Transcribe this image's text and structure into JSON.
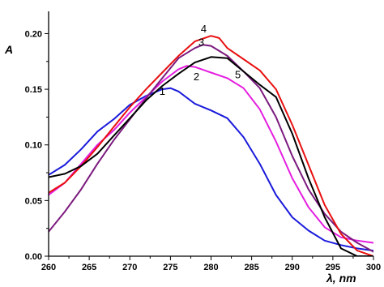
{
  "chart_data": {
    "type": "line",
    "xlabel": "λ, nm",
    "ylabel": "A",
    "xlim": [
      260,
      300
    ],
    "ylim": [
      0,
      0.22
    ],
    "x_ticks": [
      "260",
      "265",
      "270",
      "275",
      "280",
      "285",
      "290",
      "295",
      "300"
    ],
    "y_ticks": [
      "0.00",
      "0.05",
      "0.10",
      "0.15",
      "0.20"
    ],
    "grid": false,
    "series": [
      {
        "name": "1",
        "color": "#1a1adb",
        "label_at": [
          274,
          0.145
        ],
        "points": [
          [
            260,
            0.073
          ],
          [
            262,
            0.082
          ],
          [
            264,
            0.096
          ],
          [
            266,
            0.112
          ],
          [
            268,
            0.123
          ],
          [
            270,
            0.136
          ],
          [
            272,
            0.144
          ],
          [
            274,
            0.15
          ],
          [
            275,
            0.151
          ],
          [
            276,
            0.148
          ],
          [
            278,
            0.137
          ],
          [
            280,
            0.131
          ],
          [
            282,
            0.124
          ],
          [
            284,
            0.107
          ],
          [
            286,
            0.083
          ],
          [
            288,
            0.055
          ],
          [
            290,
            0.035
          ],
          [
            292,
            0.023
          ],
          [
            294,
            0.014
          ],
          [
            296,
            0.01
          ],
          [
            298,
            0.007
          ],
          [
            300,
            0.005
          ]
        ]
      },
      {
        "name": "2",
        "color": "#e51ee0",
        "label_at": [
          278.2,
          0.158
        ],
        "points": [
          [
            260,
            0.055
          ],
          [
            262,
            0.066
          ],
          [
            264,
            0.083
          ],
          [
            266,
            0.1
          ],
          [
            268,
            0.113
          ],
          [
            270,
            0.129
          ],
          [
            272,
            0.143
          ],
          [
            274,
            0.157
          ],
          [
            276,
            0.168
          ],
          [
            277,
            0.171
          ],
          [
            278,
            0.17
          ],
          [
            280,
            0.165
          ],
          [
            282,
            0.16
          ],
          [
            284,
            0.151
          ],
          [
            286,
            0.132
          ],
          [
            288,
            0.103
          ],
          [
            290,
            0.07
          ],
          [
            292,
            0.044
          ],
          [
            294,
            0.026
          ],
          [
            296,
            0.017
          ],
          [
            298,
            0.014
          ],
          [
            300,
            0.012
          ]
        ]
      },
      {
        "name": "3",
        "color": "#7b1a7e",
        "label_at": [
          278.8,
          0.189
        ],
        "points": [
          [
            260,
            0.022
          ],
          [
            262,
            0.04
          ],
          [
            264,
            0.06
          ],
          [
            266,
            0.083
          ],
          [
            268,
            0.104
          ],
          [
            270,
            0.123
          ],
          [
            272,
            0.142
          ],
          [
            274,
            0.16
          ],
          [
            276,
            0.178
          ],
          [
            278,
            0.187
          ],
          [
            279,
            0.19
          ],
          [
            280,
            0.189
          ],
          [
            282,
            0.18
          ],
          [
            284,
            0.166
          ],
          [
            286,
            0.151
          ],
          [
            288,
            0.125
          ],
          [
            290,
            0.09
          ],
          [
            292,
            0.06
          ],
          [
            294,
            0.038
          ],
          [
            296,
            0.022
          ],
          [
            298,
            0.012
          ],
          [
            300,
            0.004
          ]
        ]
      },
      {
        "name": "4",
        "color": "#e81010",
        "label_at": [
          279.1,
          0.201
        ],
        "points": [
          [
            260,
            0.057
          ],
          [
            262,
            0.066
          ],
          [
            264,
            0.081
          ],
          [
            266,
            0.098
          ],
          [
            268,
            0.116
          ],
          [
            270,
            0.134
          ],
          [
            272,
            0.15
          ],
          [
            274,
            0.165
          ],
          [
            276,
            0.18
          ],
          [
            278,
            0.193
          ],
          [
            280,
            0.198
          ],
          [
            281,
            0.196
          ],
          [
            282,
            0.187
          ],
          [
            284,
            0.177
          ],
          [
            286,
            0.167
          ],
          [
            288,
            0.15
          ],
          [
            290,
            0.118
          ],
          [
            292,
            0.082
          ],
          [
            294,
            0.046
          ],
          [
            296,
            0.02
          ],
          [
            298,
            0.005
          ],
          [
            300,
            0.0
          ]
        ]
      },
      {
        "name": "5",
        "color": "#000000",
        "label_at": [
          283.3,
          0.16
        ],
        "points": [
          [
            260,
            0.071
          ],
          [
            262,
            0.074
          ],
          [
            264,
            0.081
          ],
          [
            266,
            0.092
          ],
          [
            268,
            0.108
          ],
          [
            270,
            0.124
          ],
          [
            272,
            0.14
          ],
          [
            274,
            0.153
          ],
          [
            276,
            0.164
          ],
          [
            278,
            0.174
          ],
          [
            280,
            0.179
          ],
          [
            282,
            0.178
          ],
          [
            284,
            0.166
          ],
          [
            286,
            0.154
          ],
          [
            288,
            0.143
          ],
          [
            290,
            0.11
          ],
          [
            292,
            0.07
          ],
          [
            294,
            0.035
          ],
          [
            296,
            0.007
          ],
          [
            298,
            0.0
          ],
          [
            300,
            0.0
          ]
        ]
      }
    ]
  }
}
